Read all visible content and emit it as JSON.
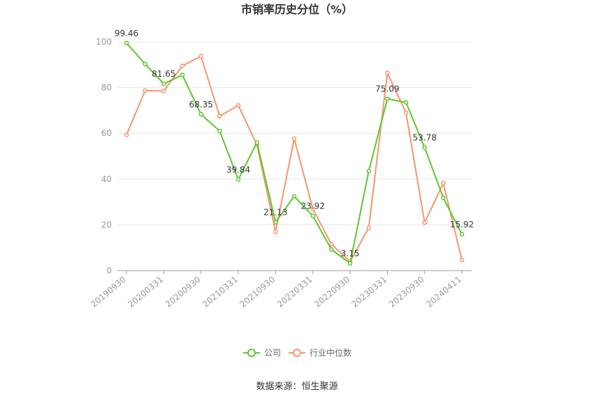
{
  "chart_data": {
    "type": "line",
    "title": "市销率历史分位（%）",
    "ylim": [
      0,
      100
    ],
    "yticks": [
      0,
      20,
      40,
      60,
      80,
      100
    ],
    "x_tick_labels": [
      "20190930",
      "20200331",
      "20200930",
      "20210331",
      "20210930",
      "20220331",
      "20220930",
      "20230331",
      "20230930",
      "20240411"
    ],
    "x_tick_positions": [
      0,
      2,
      4,
      6,
      8,
      10,
      12,
      14,
      16,
      18
    ],
    "grid": true,
    "legend_position": "bottom",
    "series": [
      {
        "name": "公司",
        "color": "#5cc72f",
        "values": [
          99.46,
          90.3,
          81.65,
          85.5,
          68.35,
          61.0,
          39.84,
          56.0,
          21.13,
          32.5,
          23.92,
          9.2,
          3.15,
          43.5,
          75.09,
          73.5,
          53.78,
          31.8,
          15.92
        ],
        "labels": {
          "0": "99.46",
          "2": "81.65",
          "4": "68.35",
          "6": "39.84",
          "8": "21.13",
          "10": "23.92",
          "12": "3.15",
          "14": "75.09",
          "16": "53.78",
          "18": "15.92"
        }
      },
      {
        "name": "行业中位数",
        "color": "#f7956d",
        "values": [
          59.3,
          78.7,
          78.5,
          89.5,
          93.7,
          67.5,
          72.2,
          55.0,
          17.0,
          57.7,
          27.0,
          11.5,
          4.0,
          18.7,
          86.4,
          69.0,
          21.0,
          38.2,
          4.6
        ]
      }
    ]
  },
  "source_text": "数据来源：恒生聚源"
}
